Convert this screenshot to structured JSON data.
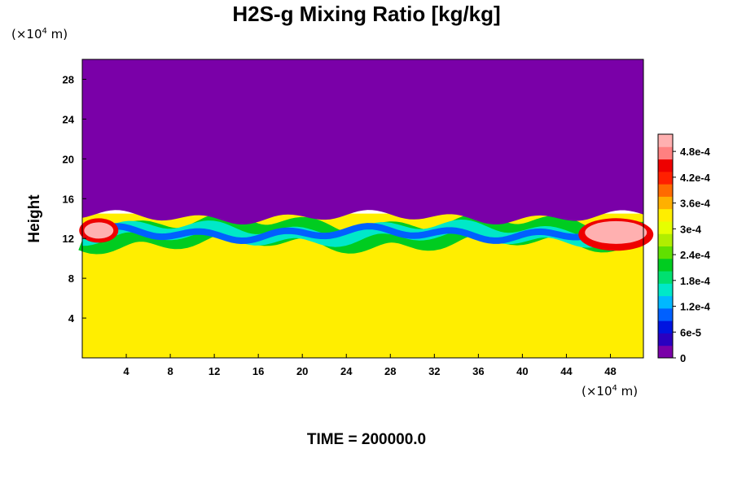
{
  "chart_data": {
    "type": "heatmap",
    "title": "H2S-g Mixing Ratio [kg/kg]",
    "ylabel": "Height",
    "x_unit": "(×10",
    "x_unit_exp": "4",
    "x_unit_tail": " m)",
    "y_unit": "(×10",
    "y_unit_exp": "4",
    "y_unit_tail": " m)",
    "xlim": [
      0,
      51
    ],
    "ylim": [
      0,
      30
    ],
    "x_ticks": [
      4,
      8,
      12,
      16,
      20,
      24,
      28,
      32,
      36,
      40,
      44,
      48
    ],
    "y_ticks": [
      4,
      8,
      12,
      16,
      20,
      24,
      28
    ],
    "colorbar": {
      "range": [
        0,
        0.00052
      ],
      "tick_values": [
        0,
        6e-05,
        0.00012,
        0.00018,
        0.00024,
        0.0003,
        0.00036,
        0.00042,
        0.00048
      ],
      "tick_labels": [
        "0",
        "6e-5",
        "1.2e-4",
        "1.8e-4",
        "2.4e-4",
        "3e-4",
        "3.6e-4",
        "4.2e-4",
        "4.8e-4"
      ],
      "colors": [
        "#7a00a8",
        "#2a00c0",
        "#0014e0",
        "#0060ff",
        "#00b8ff",
        "#00e8c8",
        "#00e070",
        "#00cc20",
        "#60e000",
        "#b0ee00",
        "#e6ff00",
        "#ffee00",
        "#ffb000",
        "#ff6a00",
        "#ff2000",
        "#ee0000",
        "#ff8080",
        "#ffb0b0"
      ]
    },
    "regions": {
      "upper_value": 0,
      "lower_value": 0.00034,
      "interface_height": 12.5
    }
  },
  "footer": {
    "time_label": "TIME = 200000.0"
  }
}
